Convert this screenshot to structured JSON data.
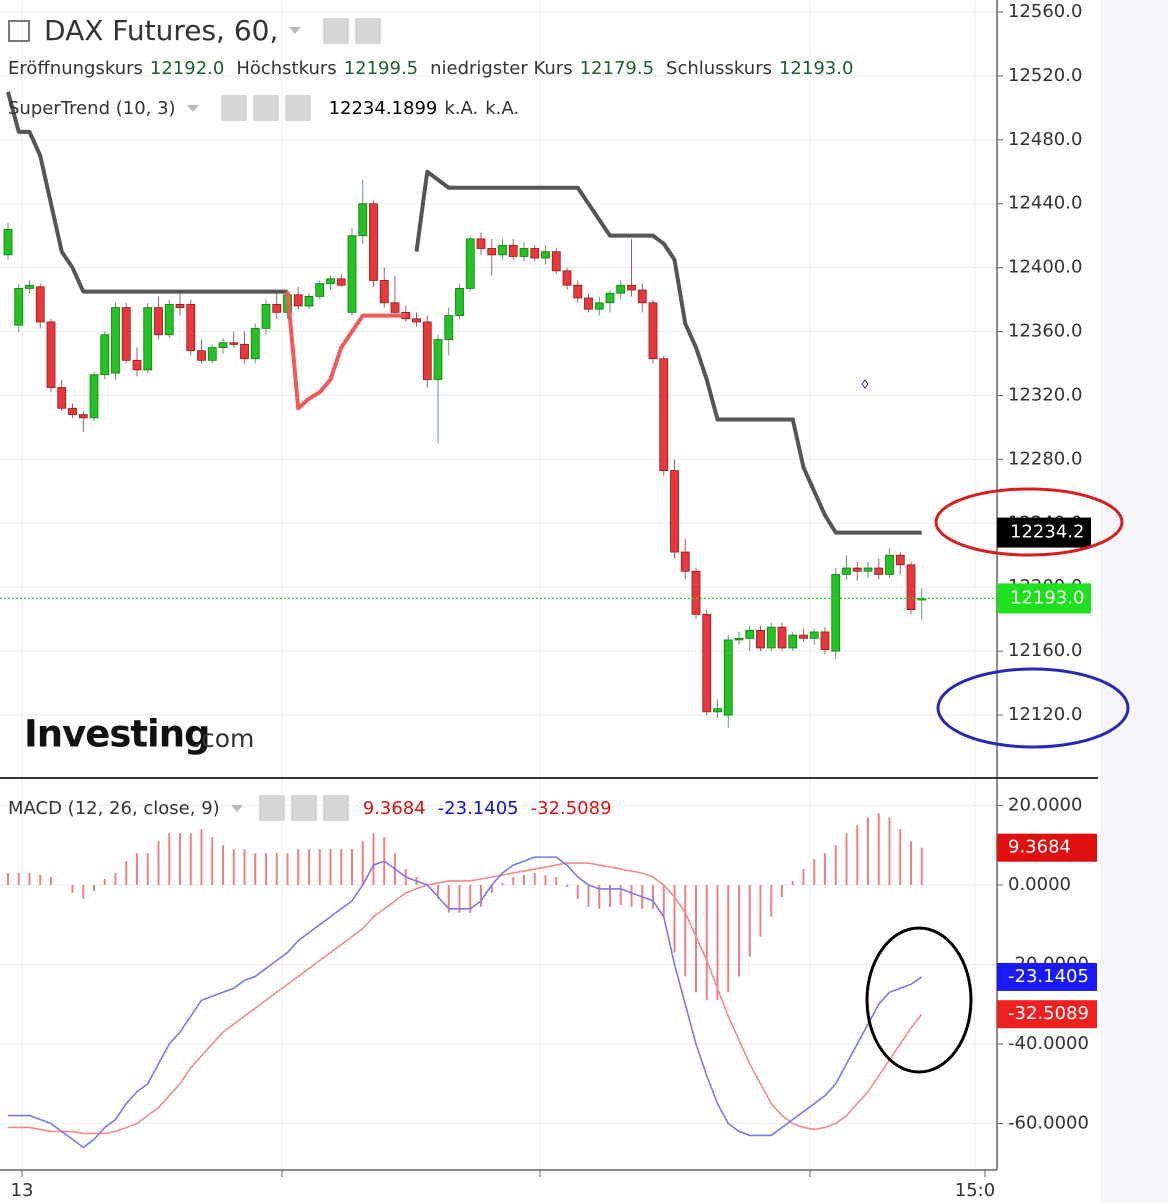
{
  "chart_data": [
    {
      "type": "candlestick",
      "title": "DAX Futures, 60,",
      "legend": [
        {
          "label": "Eröffnungskurs",
          "value": "12192.0"
        },
        {
          "label": "Höchstkurs",
          "value": "12199.5"
        },
        {
          "label": "niedrigster Kurs",
          "value": "12179.5"
        },
        {
          "label": "Schlusskurs",
          "value": "12193.0"
        }
      ],
      "open": [
        12408,
        12364,
        12387,
        12388,
        12366,
        12325,
        12312,
        12308,
        12306,
        12333,
        12334,
        12375,
        12342,
        12336,
        12375,
        12358,
        12377,
        12377,
        12348,
        12342,
        12350,
        12353,
        12352,
        12343,
        12362,
        12377,
        12372,
        12383,
        12376,
        12382,
        12390,
        12393,
        12372,
        12420,
        12440,
        12392,
        12378,
        12372,
        12368,
        12366,
        12330,
        12355,
        12370,
        12387,
        12418,
        12412,
        12408,
        12414,
        12407,
        12412,
        12406,
        12410,
        12398,
        12389,
        12381,
        12374,
        12378,
        12384,
        12389,
        12386,
        12378,
        12343,
        12273,
        12222,
        12210,
        12183,
        12122,
        12120,
        12167,
        12168,
        12173,
        12162,
        12175,
        12162,
        12170,
        12168,
        12172,
        12160,
        12208,
        12212,
        12210,
        12212,
        12208,
        12220,
        12214,
        12192
      ],
      "high": [
        12428,
        12390,
        12392,
        12390,
        12368,
        12330,
        12315,
        12310,
        12335,
        12360,
        12378,
        12378,
        12350,
        12378,
        12382,
        12380,
        12385,
        12380,
        12355,
        12352,
        12356,
        12360,
        12360,
        12365,
        12380,
        12385,
        12385,
        12388,
        12384,
        12392,
        12395,
        12396,
        12425,
        12455,
        12442,
        12400,
        12395,
        12376,
        12372,
        12370,
        12358,
        12375,
        12390,
        12420,
        12422,
        12418,
        12418,
        12418,
        12416,
        12414,
        12414,
        12412,
        12400,
        12392,
        12384,
        12382,
        12386,
        12392,
        12418,
        12390,
        12380,
        12345,
        12280,
        12230,
        12212,
        12186,
        12130,
        12170,
        12172,
        12176,
        12176,
        12178,
        12178,
        12172,
        12174,
        12174,
        12175,
        12212,
        12220,
        12216,
        12216,
        12218,
        12224,
        12222,
        12216,
        12199.5
      ],
      "low": [
        12405,
        12360,
        12384,
        12362,
        12322,
        12310,
        12306,
        12297,
        12304,
        12330,
        12330,
        12340,
        12332,
        12334,
        12355,
        12356,
        12370,
        12345,
        12340,
        12340,
        12346,
        12350,
        12340,
        12340,
        12358,
        12368,
        12368,
        12374,
        12374,
        12380,
        12386,
        12388,
        12370,
        12415,
        12388,
        12375,
        12370,
        12366,
        12363,
        12325,
        12290,
        12345,
        12368,
        12385,
        12408,
        12395,
        12405,
        12405,
        12404,
        12404,
        12402,
        12396,
        12386,
        12378,
        12372,
        12370,
        12372,
        12380,
        12382,
        12372,
        12340,
        12270,
        12218,
        12205,
        12180,
        12120,
        12118,
        12112,
        12164,
        12160,
        12160,
        12160,
        12160,
        12160,
        12166,
        12164,
        12158,
        12155,
        12205,
        12204,
        12206,
        12205,
        12206,
        12208,
        12183,
        12179.5
      ],
      "close": [
        12424,
        12387,
        12389,
        12366,
        12325,
        12312,
        12308,
        12306,
        12333,
        12358,
        12375,
        12342,
        12336,
        12375,
        12358,
        12377,
        12375,
        12348,
        12342,
        12350,
        12353,
        12352,
        12343,
        12362,
        12377,
        12372,
        12383,
        12376,
        12382,
        12390,
        12393,
        12389,
        12420,
        12440,
        12392,
        12378,
        12372,
        12368,
        12366,
        12330,
        12355,
        12370,
        12387,
        12418,
        12412,
        12408,
        12414,
        12407,
        12412,
        12406,
        12410,
        12398,
        12389,
        12381,
        12374,
        12378,
        12384,
        12389,
        12386,
        12378,
        12343,
        12273,
        12222,
        12210,
        12183,
        12122,
        12124,
        12167,
        12168,
        12173,
        12162,
        12175,
        12162,
        12170,
        12168,
        12172,
        12161,
        12208,
        12212,
        12210,
        12212,
        12208,
        12220,
        12214,
        12186,
        12193
      ],
      "up_color": "#22c322",
      "down_color": "#e8383c",
      "close_label": "12193.0",
      "close_color": "#1fe01f",
      "supertrend": {
        "name": "SuperTrend (10, 3)",
        "legend_values": [
          "12234.1899",
          "k.A.",
          "k.A."
        ],
        "series": [
          {
            "color": "#555555",
            "last_label": "12234.2",
            "values": [
              12510,
              12485,
              12485,
              12470,
              12440,
              12410,
              12400,
              12385,
              12385,
              12385,
              12385,
              12385,
              12385,
              12385,
              12385,
              12385,
              12385,
              12385,
              12385,
              12385,
              12385,
              12385,
              12385,
              12385,
              12385,
              12385,
              12385,
              null,
              null,
              null,
              null,
              null,
              null,
              null,
              null,
              null,
              null,
              null,
              12410,
              12460,
              12455,
              12450,
              12450,
              12450,
              12450,
              12450,
              12450,
              12450,
              12450,
              12450,
              12450,
              12450,
              12450,
              12450,
              12440,
              12430,
              12420,
              12420,
              12420,
              12420,
              12420,
              12415,
              12405,
              12365,
              12350,
              12330,
              12305,
              12305,
              12305,
              12305,
              12305,
              12305,
              12305,
              12305,
              12275,
              12260,
              12245,
              12234.2,
              12234.2,
              12234.2,
              12234.2,
              12234.2,
              12234.2,
              12234.2,
              12234.2,
              12234.1899
            ]
          },
          {
            "color": "#f25a5a",
            "values": [
              null,
              null,
              null,
              null,
              null,
              null,
              null,
              null,
              null,
              null,
              null,
              null,
              null,
              null,
              null,
              null,
              null,
              null,
              null,
              null,
              null,
              null,
              null,
              null,
              null,
              null,
              12385,
              12312,
              12318,
              12322,
              12330,
              12350,
              12360,
              12370,
              12370,
              12370,
              12370,
              12370,
              null,
              null,
              null,
              null,
              null,
              null,
              null,
              null,
              null,
              null,
              null,
              null,
              null,
              null,
              null,
              null,
              null,
              null,
              null,
              null,
              null,
              null,
              null,
              null,
              null,
              null,
              null,
              null,
              null,
              null,
              null,
              null,
              null,
              null,
              null,
              null,
              null,
              null,
              null,
              null,
              null,
              null,
              null,
              null,
              null,
              null,
              null,
              null
            ]
          }
        ]
      },
      "ylim": [
        12080.6,
        12567.5
      ],
      "yticks": [
        {
          "value": 12560,
          "label": "12560.0"
        },
        {
          "value": 12520,
          "label": "12520.0"
        },
        {
          "value": 12480,
          "label": "12480.0"
        },
        {
          "value": 12440,
          "label": "12440.0"
        },
        {
          "value": 12400,
          "label": "12400.0"
        },
        {
          "value": 12360,
          "label": "12360.0"
        },
        {
          "value": 12320,
          "label": "12320.0"
        },
        {
          "value": 12280,
          "label": "12280.0"
        },
        {
          "value": 12240,
          "label": "12240.0"
        },
        {
          "value": 12200,
          "label": "12200.0"
        },
        {
          "value": 12160,
          "label": "12160.0"
        },
        {
          "value": 12120,
          "label": "12120.0"
        }
      ],
      "x_labels": [
        "13",
        null,
        null,
        null,
        "15:0"
      ],
      "logo": {
        "name": "Investing",
        "suffix": ".com"
      }
    },
    {
      "type": "macd",
      "title": "MACD (12, 26, close, 9)",
      "histogram": {
        "color": "#f08080",
        "last_label": "9.3684",
        "label_color": "#e01010",
        "values": [
          3,
          3,
          3,
          2.5,
          2,
          0,
          -2,
          -3.5,
          -1.5,
          1.5,
          3,
          6,
          8,
          8,
          11,
          13,
          13,
          13,
          14,
          12,
          10,
          9,
          9,
          8,
          8,
          8,
          8,
          9,
          9,
          9,
          9,
          9,
          9,
          11,
          13,
          12,
          8,
          4,
          2,
          0,
          -3.5,
          -7,
          -7,
          -7,
          -5.5,
          -2,
          0.5,
          2,
          2.5,
          3,
          2.5,
          2,
          -0.5,
          -3.5,
          -5.5,
          -6,
          -5.5,
          -5,
          -5.5,
          -6,
          -6,
          -8,
          -17,
          -23,
          -27,
          -29,
          -29,
          -27,
          -23,
          -18,
          -13,
          -8,
          -3,
          1,
          4,
          6.5,
          8,
          10,
          13,
          15,
          17,
          18,
          17,
          14,
          11,
          9.3684
        ]
      },
      "macd": {
        "color": "#7878f5",
        "last_label": "-23.1405",
        "label_color": "#1010d0",
        "badge_color": "#1a1aff",
        "values": [
          -58,
          -58,
          -58,
          -59,
          -60,
          -62,
          -64,
          -66,
          -64,
          -61,
          -59,
          -55,
          -52,
          -50,
          -45,
          -40,
          -37,
          -33,
          -29,
          -28,
          -27,
          -26,
          -24,
          -23,
          -21,
          -19,
          -17,
          -14,
          -12,
          -10,
          -8,
          -6,
          -4,
          0,
          5,
          6,
          4,
          2,
          1,
          0,
          -3,
          -6,
          -6,
          -6,
          -4,
          0,
          3,
          5,
          6,
          7,
          7,
          7,
          5,
          2,
          0,
          -1,
          -1,
          -1,
          -2,
          -3,
          -4,
          -8,
          -20,
          -30,
          -40,
          -48,
          -55,
          -60,
          -62,
          -63,
          -63,
          -63,
          -61,
          -59,
          -57,
          -55,
          -53,
          -50,
          -45,
          -40,
          -35,
          -30,
          -27,
          -26,
          -25,
          -23.1405
        ]
      },
      "signal": {
        "color": "#f58a8a",
        "last_label": "-32.5089",
        "label_color": "#e01010",
        "badge_color": "#f02020",
        "values": [
          -61,
          -61,
          -61,
          -61.5,
          -62,
          -62,
          -62,
          -62.5,
          -62.5,
          -62.5,
          -62,
          -61,
          -60,
          -58,
          -56,
          -53,
          -50,
          -46,
          -43,
          -40,
          -37,
          -35,
          -33,
          -31,
          -29,
          -27,
          -25,
          -23,
          -21,
          -19,
          -17,
          -15,
          -13,
          -11,
          -8,
          -6,
          -4,
          -2,
          -1,
          0,
          0.5,
          1,
          1,
          1,
          1.5,
          2,
          2.5,
          3,
          3.5,
          4,
          4.5,
          5,
          5.5,
          5.5,
          5.5,
          5,
          4.5,
          4,
          3.5,
          3,
          2,
          0,
          -3,
          -7,
          -13,
          -19,
          -26,
          -33,
          -39,
          -45,
          -50,
          -55,
          -58,
          -60,
          -61,
          -61.5,
          -61,
          -60,
          -58,
          -55,
          -52,
          -48,
          -44,
          -40,
          -36,
          -32.5089
        ]
      },
      "ylim": [
        -71.7,
        26.9
      ],
      "yticks": [
        {
          "value": 20,
          "label": "20.0000"
        },
        {
          "value": 0,
          "label": "0.0000"
        },
        {
          "value": -20,
          "label": "-20.0000"
        },
        {
          "value": -40,
          "label": "-40.0000"
        },
        {
          "value": -60,
          "label": "-60.0000"
        }
      ]
    }
  ]
}
